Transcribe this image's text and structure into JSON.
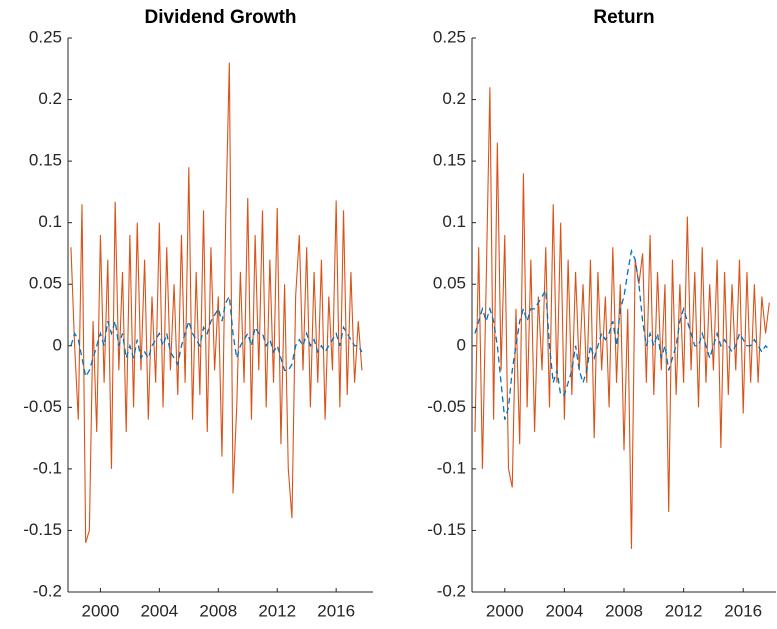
{
  "chart_data": [
    {
      "type": "line",
      "title": "Dividend Growth",
      "x": [
        1998,
        1998.25,
        1998.5,
        1998.75,
        1999,
        1999.25,
        1999.5,
        1999.75,
        2000,
        2000.25,
        2000.5,
        2000.75,
        2001,
        2001.25,
        2001.5,
        2001.75,
        2002,
        2002.25,
        2002.5,
        2002.75,
        2003,
        2003.25,
        2003.5,
        2003.75,
        2004,
        2004.25,
        2004.5,
        2004.75,
        2005,
        2005.25,
        2005.5,
        2005.75,
        2006,
        2006.25,
        2006.5,
        2006.75,
        2007,
        2007.25,
        2007.5,
        2007.75,
        2008,
        2008.25,
        2008.5,
        2008.75,
        2009,
        2009.25,
        2009.5,
        2009.75,
        2010,
        2010.25,
        2010.5,
        2010.75,
        2011,
        2011.25,
        2011.5,
        2011.75,
        2012,
        2012.25,
        2012.5,
        2012.75,
        2013,
        2013.25,
        2013.5,
        2013.75,
        2014,
        2014.25,
        2014.5,
        2014.75,
        2015,
        2015.25,
        2015.5,
        2015.75,
        2016,
        2016.25,
        2016.5,
        2016.75,
        2017,
        2017.25,
        2017.5,
        2017.75
      ],
      "series": [
        {
          "color": "#D95319",
          "line_style": "solid",
          "values": [
            0.08,
            0.0,
            -0.06,
            0.115,
            -0.16,
            -0.15,
            0.02,
            -0.07,
            0.09,
            -0.03,
            0.07,
            -0.1,
            0.117,
            -0.02,
            0.06,
            -0.07,
            0.09,
            -0.05,
            0.1,
            -0.02,
            0.07,
            -0.06,
            0.04,
            -0.03,
            0.1,
            -0.05,
            0.08,
            -0.02,
            0.05,
            -0.04,
            0.09,
            -0.03,
            0.145,
            -0.06,
            0.06,
            -0.04,
            0.11,
            -0.07,
            0.08,
            -0.02,
            0.04,
            -0.09,
            0.1,
            0.23,
            -0.12,
            -0.05,
            0.06,
            -0.03,
            0.12,
            -0.06,
            0.09,
            -0.02,
            0.11,
            -0.05,
            0.07,
            -0.03,
            0.112,
            -0.08,
            0.05,
            -0.1,
            -0.14,
            0.04,
            0.09,
            -0.02,
            0.08,
            -0.05,
            0.06,
            -0.03,
            0.07,
            -0.06,
            0.04,
            -0.02,
            0.118,
            -0.05,
            0.11,
            -0.04,
            0.06,
            -0.03,
            0.02,
            -0.02
          ]
        },
        {
          "color": "#0072BD",
          "line_style": "dashed",
          "values": [
            0.0,
            0.01,
            0.005,
            -0.01,
            -0.025,
            -0.02,
            -0.01,
            0.0,
            0.01,
            0.0,
            0.02,
            0.01,
            0.02,
            0.0,
            0.01,
            -0.01,
            0.0,
            -0.01,
            0.005,
            -0.01,
            -0.005,
            -0.01,
            0.0,
            0.005,
            0.01,
            0.0,
            0.01,
            -0.005,
            -0.01,
            -0.015,
            0.0,
            0.01,
            0.02,
            0.01,
            0.005,
            0.0,
            0.015,
            0.01,
            0.02,
            0.025,
            0.03,
            0.02,
            0.035,
            0.04,
            0.01,
            -0.01,
            0.0,
            0.005,
            0.01,
            0.0,
            0.015,
            0.01,
            0.01,
            0.0,
            0.005,
            -0.005,
            0.0,
            -0.01,
            -0.02,
            -0.02,
            -0.015,
            0.0,
            0.005,
            0.0,
            0.01,
            0.0,
            0.005,
            -0.005,
            0.0,
            -0.005,
            0.0,
            0.005,
            0.01,
            0.0,
            0.015,
            0.01,
            0.005,
            0.0,
            0.0,
            -0.005
          ]
        }
      ],
      "xlim": [
        1997.8,
        2018.5
      ],
      "xticks": [
        2000,
        2004,
        2008,
        2012,
        2016
      ],
      "ylim": [
        -0.2,
        0.25
      ],
      "yticks": [
        -0.2,
        -0.15,
        -0.1,
        -0.05,
        0,
        0.05,
        0.1,
        0.15,
        0.2,
        0.25
      ]
    },
    {
      "type": "line",
      "title": "Return",
      "x": [
        1998,
        1998.25,
        1998.5,
        1998.75,
        1999,
        1999.25,
        1999.5,
        1999.75,
        2000,
        2000.25,
        2000.5,
        2000.75,
        2001,
        2001.25,
        2001.5,
        2001.75,
        2002,
        2002.25,
        2002.5,
        2002.75,
        2003,
        2003.25,
        2003.5,
        2003.75,
        2004,
        2004.25,
        2004.5,
        2004.75,
        2005,
        2005.25,
        2005.5,
        2005.75,
        2006,
        2006.25,
        2006.5,
        2006.75,
        2007,
        2007.25,
        2007.5,
        2007.75,
        2008,
        2008.25,
        2008.5,
        2008.75,
        2009,
        2009.25,
        2009.5,
        2009.75,
        2010,
        2010.25,
        2010.5,
        2010.75,
        2011,
        2011.25,
        2011.5,
        2011.75,
        2012,
        2012.25,
        2012.5,
        2012.75,
        2013,
        2013.25,
        2013.5,
        2013.75,
        2014,
        2014.25,
        2014.5,
        2014.75,
        2015,
        2015.25,
        2015.5,
        2015.75,
        2016,
        2016.25,
        2016.5,
        2016.75,
        2017,
        2017.25,
        2017.5,
        2017.75
      ],
      "series": [
        {
          "color": "#D95319",
          "line_style": "solid",
          "values": [
            -0.07,
            0.08,
            -0.1,
            0.05,
            0.21,
            -0.06,
            0.165,
            -0.02,
            0.09,
            -0.1,
            -0.115,
            0.03,
            -0.08,
            0.14,
            -0.05,
            0.07,
            -0.07,
            0.04,
            -0.02,
            0.08,
            -0.05,
            0.115,
            -0.03,
            0.1,
            -0.06,
            0.07,
            -0.04,
            0.06,
            -0.02,
            0.05,
            -0.03,
            0.07,
            -0.075,
            0.06,
            -0.02,
            0.04,
            -0.05,
            0.08,
            -0.03,
            0.05,
            -0.085,
            0.03,
            -0.165,
            0.07,
            0.05,
            0.075,
            -0.03,
            0.09,
            -0.04,
            0.06,
            -0.02,
            0.05,
            -0.135,
            0.07,
            -0.04,
            0.05,
            -0.03,
            0.105,
            -0.02,
            0.06,
            -0.05,
            0.08,
            -0.03,
            0.05,
            -0.02,
            0.07,
            -0.083,
            0.06,
            -0.04,
            0.05,
            -0.02,
            0.07,
            -0.055,
            0.06,
            -0.03,
            0.05,
            -0.03,
            0.04,
            0.01,
            0.035
          ]
        },
        {
          "color": "#0072BD",
          "line_style": "dashed",
          "values": [
            0.01,
            0.02,
            0.03,
            0.02,
            0.03,
            0.02,
            0.0,
            -0.03,
            -0.06,
            -0.05,
            -0.02,
            0.0,
            0.02,
            0.03,
            0.02,
            0.03,
            0.03,
            0.035,
            0.04,
            0.045,
            0.0,
            -0.03,
            -0.02,
            -0.04,
            -0.04,
            -0.03,
            -0.02,
            0.0,
            -0.02,
            -0.03,
            -0.02,
            0.0,
            -0.01,
            0.0,
            0.01,
            0.005,
            0.01,
            0.02,
            0.0,
            0.03,
            0.04,
            0.06,
            0.077,
            0.07,
            0.05,
            0.02,
            0.0,
            0.01,
            0.0,
            0.01,
            -0.01,
            0.0,
            -0.02,
            -0.01,
            0.0,
            0.02,
            0.03,
            0.02,
            0.01,
            0.0,
            0.0,
            0.01,
            0.0,
            -0.01,
            0.0,
            0.01,
            0.0,
            0.005,
            0.0,
            -0.005,
            0.0,
            0.01,
            0.005,
            0.0,
            0.0,
            0.005,
            0.0,
            -0.005,
            0.0,
            -0.003
          ]
        }
      ],
      "xlim": [
        1997.8,
        2018.2
      ],
      "xticks": [
        2000,
        2004,
        2008,
        2012,
        2016
      ],
      "ylim": [
        -0.2,
        0.25
      ],
      "yticks": [
        -0.2,
        -0.15,
        -0.1,
        -0.05,
        0,
        0.05,
        0.1,
        0.15,
        0.2,
        0.25
      ]
    }
  ]
}
